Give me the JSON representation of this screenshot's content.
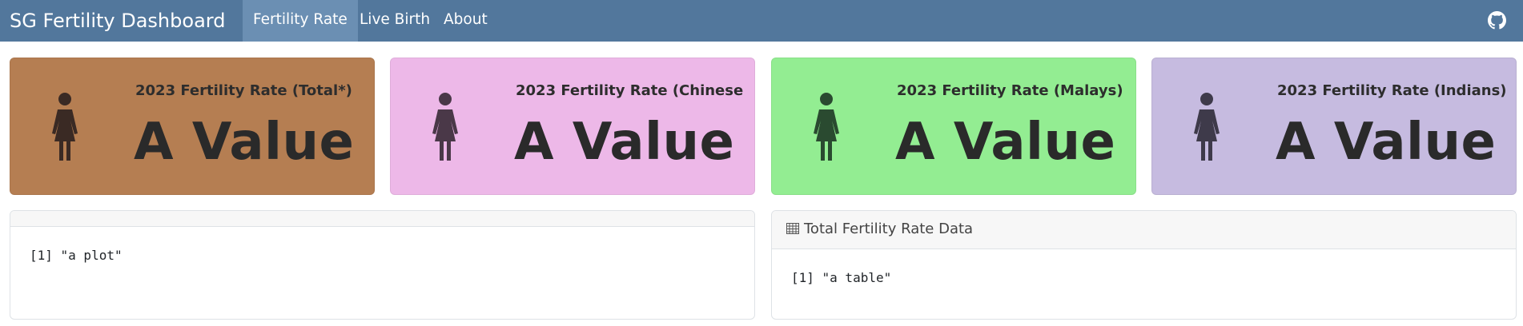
{
  "navbar": {
    "brand": "SG Fertility Dashboard",
    "tabs": [
      {
        "label": "Fertility Rate",
        "active": true
      },
      {
        "label": "Live Birth",
        "active": false
      },
      {
        "label": "About",
        "active": false
      }
    ],
    "github_icon": "github-icon",
    "bg_color": "#52779c"
  },
  "value_boxes": [
    {
      "title": "2023 Fertility Rate (Total*)",
      "value": "A Value",
      "color": "#b57e52",
      "icon": "female-person-icon"
    },
    {
      "title": "2023 Fertility Rate (Chinese",
      "value": "A Value",
      "color": "#edb8e8",
      "icon": "female-person-icon"
    },
    {
      "title": "2023 Fertility Rate (Malays)",
      "value": "A Value",
      "color": "#93ed92",
      "icon": "female-person-icon"
    },
    {
      "title": "2023 Fertility Rate (Indians)",
      "value": "A Value",
      "color": "#c6bbe0",
      "icon": "female-person-icon"
    }
  ],
  "plot_card": {
    "title": "",
    "output": "[1] \"a plot\""
  },
  "table_card": {
    "icon": "table-icon",
    "title": "Total Fertility Rate Data",
    "output": "[1] \"a table\""
  }
}
